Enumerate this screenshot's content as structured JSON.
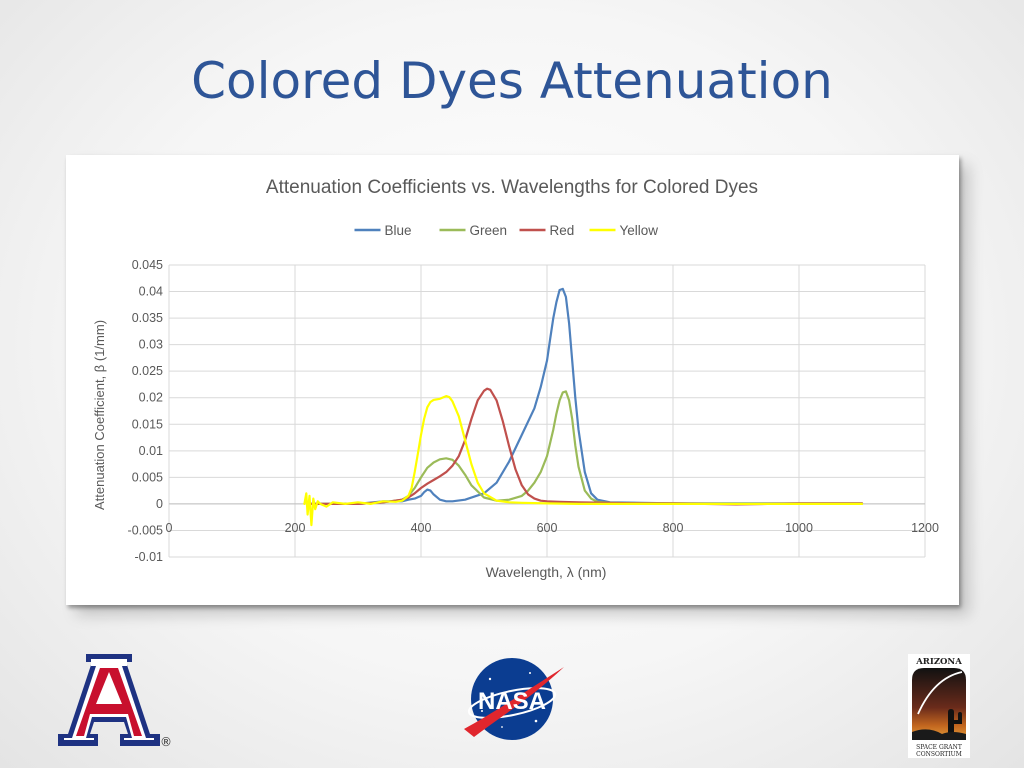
{
  "slide": {
    "title": "Colored Dyes Attenuation"
  },
  "logos": {
    "ua": {
      "letter": "A",
      "mark": "®",
      "colors": {
        "red": "#c8102e",
        "navy": "#1e3282"
      }
    },
    "nasa": {
      "text": "NASA",
      "colors": {
        "blue": "#0b3d91",
        "red": "#e0262d"
      }
    },
    "asgc": {
      "top": "ARIZONA",
      "bottom_lines": [
        "SPACE GRANT",
        "CONSORTIUM"
      ]
    }
  },
  "chart_data": {
    "type": "line",
    "title": "Attenuation Coefficients vs. Wavelengths for Colored Dyes",
    "xlabel": "Wavelength, λ (nm)",
    "ylabel": "Attenuation Coefficient, β (1/mm)",
    "xlim": [
      0,
      1200
    ],
    "ylim": [
      -0.01,
      0.045
    ],
    "xticks": [
      0,
      200,
      400,
      600,
      800,
      1000,
      1200
    ],
    "yticks": [
      0.045,
      0.04,
      0.035,
      0.03,
      0.025,
      0.02,
      0.015,
      0.01,
      0.005,
      0,
      -0.005,
      -0.01
    ],
    "ytick_labels": [
      "0.045",
      "0.04",
      "0.035",
      "0.03",
      "0.025",
      "0.02",
      "0.015",
      "0.01",
      "0.005",
      "0",
      "-0.005",
      "-0.01"
    ],
    "grid": true,
    "legend_position": "top",
    "series": [
      {
        "name": "Blue",
        "color": "#4f81bd",
        "x": [
          220,
          225,
          230,
          240,
          260,
          300,
          340,
          370,
          380,
          390,
          400,
          405,
          410,
          415,
          420,
          430,
          440,
          450,
          470,
          500,
          520,
          540,
          560,
          580,
          590,
          600,
          605,
          610,
          615,
          620,
          625,
          630,
          635,
          640,
          645,
          650,
          660,
          670,
          680,
          700,
          750,
          800,
          900,
          1000,
          1100
        ],
        "y": [
          0.0,
          0.0,
          0.0,
          0.0,
          0.0,
          0.0,
          0.0005,
          0.0005,
          0.0008,
          0.001,
          0.0015,
          0.0022,
          0.0027,
          0.0025,
          0.0018,
          0.0008,
          0.0005,
          0.0005,
          0.0008,
          0.002,
          0.004,
          0.008,
          0.013,
          0.018,
          0.022,
          0.027,
          0.031,
          0.035,
          0.038,
          0.0403,
          0.0405,
          0.039,
          0.034,
          0.027,
          0.02,
          0.014,
          0.006,
          0.002,
          0.0008,
          0.0003,
          0.0002,
          0.0001,
          0.0001,
          0.0001,
          0.0001
        ]
      },
      {
        "name": "Green",
        "color": "#9bbb59",
        "x": [
          220,
          240,
          300,
          340,
          370,
          380,
          390,
          400,
          410,
          420,
          430,
          440,
          450,
          460,
          470,
          480,
          500,
          520,
          540,
          560,
          570,
          580,
          590,
          600,
          610,
          615,
          620,
          625,
          630,
          635,
          640,
          645,
          650,
          660,
          670,
          680,
          700,
          750,
          800,
          900,
          1000,
          1100
        ],
        "y": [
          0.0,
          0.0,
          0.0,
          0.0003,
          0.0008,
          0.0015,
          0.003,
          0.005,
          0.0068,
          0.0078,
          0.0084,
          0.0086,
          0.0083,
          0.0072,
          0.0055,
          0.0035,
          0.0012,
          0.0006,
          0.0008,
          0.0015,
          0.0025,
          0.004,
          0.006,
          0.009,
          0.014,
          0.017,
          0.0195,
          0.021,
          0.0212,
          0.0195,
          0.016,
          0.011,
          0.007,
          0.0025,
          0.001,
          0.0004,
          0.0002,
          0.0001,
          0.0001,
          0.0,
          0.0,
          0.0
        ]
      },
      {
        "name": "Red",
        "color": "#c0504d",
        "x": [
          220,
          240,
          300,
          340,
          370,
          380,
          390,
          400,
          410,
          420,
          430,
          440,
          450,
          460,
          470,
          480,
          490,
          500,
          505,
          510,
          520,
          530,
          540,
          550,
          560,
          570,
          580,
          590,
          600,
          620,
          650,
          700,
          750,
          800,
          850,
          900,
          950,
          1000,
          1050,
          1100
        ],
        "y": [
          0.0,
          0.0,
          0.0,
          0.0003,
          0.0008,
          0.0012,
          0.002,
          0.003,
          0.0038,
          0.0045,
          0.0052,
          0.006,
          0.0072,
          0.009,
          0.012,
          0.016,
          0.0195,
          0.0213,
          0.0217,
          0.0215,
          0.0195,
          0.0155,
          0.0108,
          0.0065,
          0.0035,
          0.0018,
          0.001,
          0.0006,
          0.0005,
          0.0004,
          0.0003,
          0.0002,
          0.0001,
          0.0001,
          0.0,
          -0.0001,
          0.0,
          0.0001,
          0.0001,
          0.0001
        ]
      },
      {
        "name": "Yellow",
        "color": "#ffff00",
        "x": [
          215,
          218,
          220,
          223,
          226,
          229,
          232,
          236,
          240,
          250,
          260,
          280,
          300,
          320,
          340,
          360,
          370,
          380,
          385,
          390,
          395,
          400,
          405,
          410,
          415,
          420,
          430,
          440,
          445,
          450,
          460,
          470,
          480,
          490,
          500,
          520,
          540,
          560,
          600,
          650,
          700,
          750,
          800,
          850,
          900,
          1000,
          1100
        ],
        "y": [
          0.0,
          0.002,
          -0.002,
          0.0015,
          -0.004,
          0.001,
          -0.001,
          0.0005,
          0.0,
          -0.0005,
          0.0003,
          0.0,
          0.0003,
          0.0,
          0.0005,
          0.0004,
          0.0006,
          0.0015,
          0.003,
          0.006,
          0.0095,
          0.013,
          0.016,
          0.0182,
          0.0192,
          0.0196,
          0.0198,
          0.0203,
          0.0201,
          0.0193,
          0.0165,
          0.012,
          0.0075,
          0.004,
          0.002,
          0.0006,
          0.0003,
          0.0002,
          0.0001,
          0.0,
          0.0,
          0.0,
          0.0,
          0.0,
          0.0,
          0.0,
          0.0
        ]
      }
    ]
  }
}
